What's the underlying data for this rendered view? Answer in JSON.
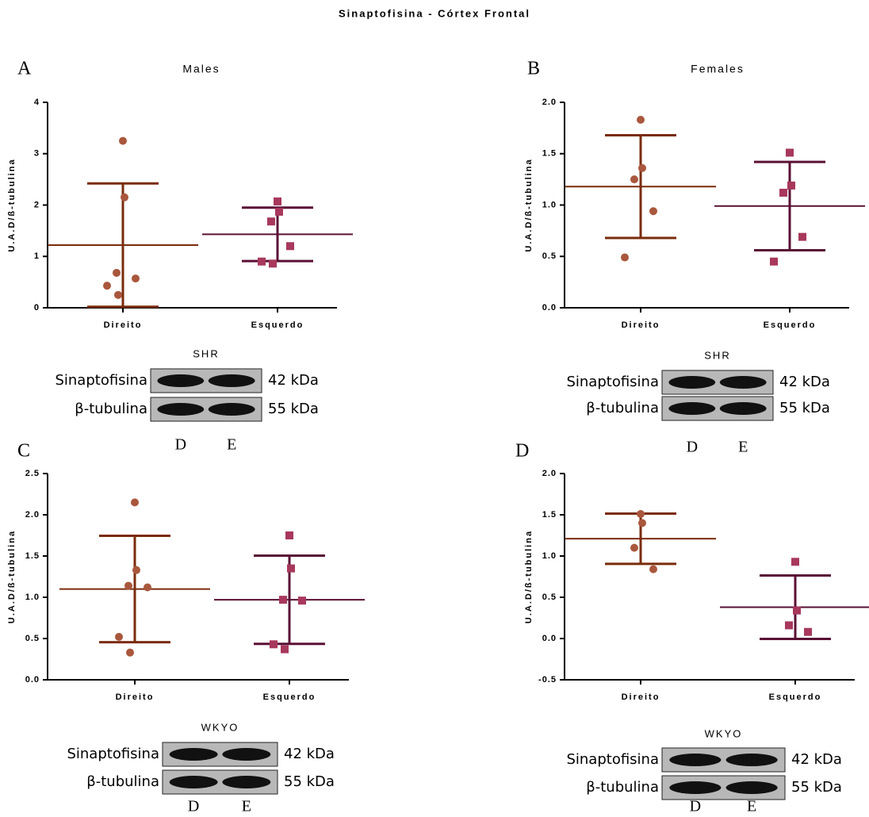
{
  "title": "Sinaptofisina - Córtex Frontal",
  "chart_data": [
    {
      "type": "scatter",
      "panel": "A",
      "title": "Males",
      "y_label": "U.A.D/ß-tubulina",
      "categories": [
        "Direito",
        "Esquerdo"
      ],
      "ylim": [
        0,
        4
      ],
      "yticks": [
        0,
        1,
        2,
        3,
        4
      ],
      "series": [
        {
          "color": "#a9573d",
          "line_color": "#7a2c0c",
          "marker": "circle",
          "values": [
            3.25,
            2.15,
            0.68,
            0.57,
            0.43,
            0.25
          ],
          "mean": 1.22,
          "sd": 1.2
        },
        {
          "color": "#a8385c",
          "line_color": "#5a1035",
          "marker": "square",
          "values": [
            2.07,
            1.87,
            1.68,
            1.2,
            0.9,
            0.86
          ],
          "mean": 1.43,
          "sd": 0.52
        }
      ],
      "blot": {
        "group": "SHR",
        "rows": [
          {
            "label": "Sinaptofisina",
            "size": "42 kDa"
          },
          {
            "label": "β-tubulina",
            "size": "55 kDa"
          }
        ],
        "lanes": [
          "D",
          "E"
        ]
      }
    },
    {
      "type": "scatter",
      "panel": "B",
      "title": "Females",
      "y_label": "U.A.D/ß-tubulina",
      "categories": [
        "Direito",
        "Esquerdo"
      ],
      "ylim": [
        0,
        2
      ],
      "yticks": [
        {
          "value": 0,
          "label": "0.0"
        },
        {
          "value": 0.5,
          "label": "0.5"
        },
        {
          "value": 1,
          "label": "1.0"
        },
        {
          "value": 1.5,
          "label": "1.5"
        },
        {
          "value": 2,
          "label": "2.0"
        }
      ],
      "series": [
        {
          "color": "#a9573d",
          "line_color": "#7a2c0c",
          "marker": "circle",
          "values": [
            1.83,
            1.36,
            1.25,
            0.94,
            0.49
          ],
          "mean": 1.18,
          "sd": 0.5
        },
        {
          "color": "#a8385c",
          "line_color": "#5a1035",
          "marker": "square",
          "values": [
            1.51,
            1.19,
            1.12,
            0.69,
            0.45
          ],
          "mean": 0.99,
          "sd": 0.43
        }
      ],
      "blot": {
        "group": "SHR",
        "rows": [
          {
            "label": "Sinaptofisina",
            "size": "42 kDa"
          },
          {
            "label": "β-tubulina",
            "size": "55 kDa"
          }
        ],
        "lanes": [
          "D",
          "E"
        ]
      }
    },
    {
      "type": "scatter",
      "panel": "C",
      "y_label": "U.A.D/ß-tubulina",
      "categories": [
        "Direito",
        "Esquerdo"
      ],
      "ylim": [
        0,
        2.5
      ],
      "yticks": [
        {
          "value": 0,
          "label": "0.0"
        },
        {
          "value": 0.5,
          "label": "0.5"
        },
        {
          "value": 1,
          "label": "1.0"
        },
        {
          "value": 1.5,
          "label": "1.5"
        },
        {
          "value": 2,
          "label": "2.0"
        },
        {
          "value": 2.5,
          "label": "2.5"
        }
      ],
      "series": [
        {
          "color": "#a9573d",
          "line_color": "#7a2c0c",
          "marker": "circle",
          "values": [
            2.15,
            1.33,
            1.14,
            1.12,
            0.52,
            0.33
          ],
          "mean": 1.1,
          "sd": 0.645
        },
        {
          "color": "#a8385c",
          "line_color": "#5a1035",
          "marker": "square",
          "values": [
            1.75,
            1.35,
            0.97,
            0.96,
            0.43,
            0.37
          ],
          "mean": 0.97,
          "sd": 0.535
        }
      ],
      "blot": {
        "group": "WKYO",
        "rows": [
          {
            "label": "Sinaptofisina",
            "size": "42 kDa"
          },
          {
            "label": "β-tubulina",
            "size": "55 kDa"
          }
        ],
        "lanes": [
          "D",
          "E"
        ]
      }
    },
    {
      "type": "scatter",
      "panel": "D",
      "y_label": "U.A.D/ß-tubulina",
      "categories": [
        "Direito",
        "Esquerdo"
      ],
      "ylim": [
        -0.5,
        2
      ],
      "yticks": [
        {
          "value": -0.5,
          "label": "-0.5"
        },
        {
          "value": 0,
          "label": "0.0"
        },
        {
          "value": 0.5,
          "label": "0.5"
        },
        {
          "value": 1,
          "label": "1.0"
        },
        {
          "value": 1.5,
          "label": "1.5"
        },
        {
          "value": 2,
          "label": "2.0"
        }
      ],
      "series": [
        {
          "color": "#a9573d",
          "line_color": "#7a2c0c",
          "marker": "circle",
          "values": [
            1.51,
            1.4,
            1.1,
            0.84
          ],
          "mean": 1.21,
          "sd": 0.305
        },
        {
          "color": "#a8385c",
          "line_color": "#5a1035",
          "marker": "square",
          "values": [
            0.93,
            0.34,
            0.16,
            0.08
          ],
          "mean": 0.38,
          "sd": 0.385
        }
      ],
      "blot": {
        "group": "WKYO",
        "rows": [
          {
            "label": "Sinaptofisina",
            "size": "42 kDa"
          },
          {
            "label": "β-tubulina",
            "size": "55 kDa"
          }
        ],
        "lanes": [
          "D",
          "E"
        ]
      }
    }
  ]
}
